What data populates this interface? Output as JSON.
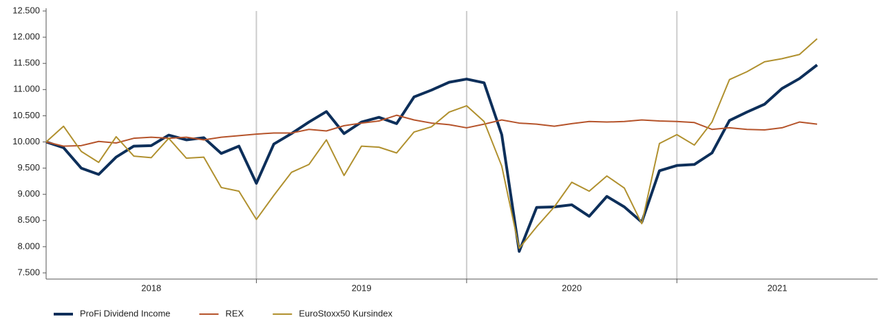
{
  "chart_data": {
    "type": "line",
    "x": [
      2018,
      2018.083,
      2018.167,
      2018.25,
      2018.333,
      2018.417,
      2018.5,
      2018.583,
      2018.667,
      2018.75,
      2018.833,
      2018.917,
      2019,
      2019.083,
      2019.167,
      2019.25,
      2019.333,
      2019.417,
      2019.5,
      2019.583,
      2019.667,
      2019.75,
      2019.833,
      2019.917,
      2020,
      2020.083,
      2020.167,
      2020.25,
      2020.333,
      2020.417,
      2020.5,
      2020.583,
      2020.667,
      2020.75,
      2020.833,
      2020.917,
      2021,
      2021.083,
      2021.167,
      2021.25,
      2021.333,
      2021.417,
      2021.5,
      2021.583,
      2021.667
    ],
    "xlim": [
      2018,
      2021.955
    ],
    "xticks": [
      2019,
      2020,
      2021
    ],
    "year_labels": [
      "2018",
      "2019",
      "2020",
      "2021"
    ],
    "ylim": [
      7382,
      12500
    ],
    "yticks": [
      {
        "value": 7500,
        "label": "7.500"
      },
      {
        "value": 8000,
        "label": "8.000"
      },
      {
        "value": 8500,
        "label": "8.500"
      },
      {
        "value": 9000,
        "label": "9.000"
      },
      {
        "value": 9500,
        "label": "9.500"
      },
      {
        "value": 10000,
        "label": "10.000"
      },
      {
        "value": 10500,
        "label": "10.500"
      },
      {
        "value": 11000,
        "label": "11.000"
      },
      {
        "value": 11500,
        "label": "11.500"
      },
      {
        "value": 12000,
        "label": "12.000"
      },
      {
        "value": 12500,
        "label": "12.500"
      }
    ],
    "grid": "x",
    "series": [
      {
        "name": "ProFi Dividend Income",
        "color": "#0d2f5a",
        "width": 4,
        "values": [
          10000,
          9890,
          9500,
          9380,
          9710,
          9920,
          9930,
          10130,
          10040,
          10080,
          9780,
          9920,
          9210,
          9960,
          10160,
          10380,
          10580,
          10160,
          10380,
          10470,
          10350,
          10860,
          10990,
          11140,
          11200,
          11130,
          10140,
          7910,
          8750,
          8760,
          8800,
          8580,
          8960,
          8760,
          8470,
          9450,
          9550,
          9570,
          9790,
          10410,
          10570,
          10720,
          11020,
          11210,
          11470
        ]
      },
      {
        "name": "REX",
        "color": "#b5532a",
        "width": 2,
        "values": [
          10000,
          9920,
          9930,
          10010,
          9980,
          10070,
          10090,
          10070,
          10090,
          10040,
          10090,
          10120,
          10150,
          10170,
          10170,
          10240,
          10210,
          10310,
          10360,
          10400,
          10510,
          10420,
          10360,
          10330,
          10270,
          10340,
          10420,
          10360,
          10340,
          10300,
          10350,
          10390,
          10380,
          10390,
          10420,
          10400,
          10390,
          10370,
          10240,
          10270,
          10240,
          10230,
          10270,
          10380,
          10340
        ]
      },
      {
        "name": "EuroStoxx50 Kursindex",
        "color": "#b0902e",
        "width": 2,
        "values": [
          10000,
          10300,
          9820,
          9610,
          10100,
          9730,
          9700,
          10070,
          9690,
          9710,
          9130,
          9060,
          8520,
          8980,
          9420,
          9570,
          10040,
          9360,
          9920,
          9900,
          9790,
          10190,
          10290,
          10570,
          10690,
          10390,
          9540,
          7970,
          8380,
          8760,
          9230,
          9060,
          9350,
          9120,
          8440,
          9970,
          10140,
          9940,
          10380,
          11190,
          11340,
          11530,
          11590,
          11670,
          11970
        ]
      }
    ],
    "legend": "bottom-left"
  }
}
